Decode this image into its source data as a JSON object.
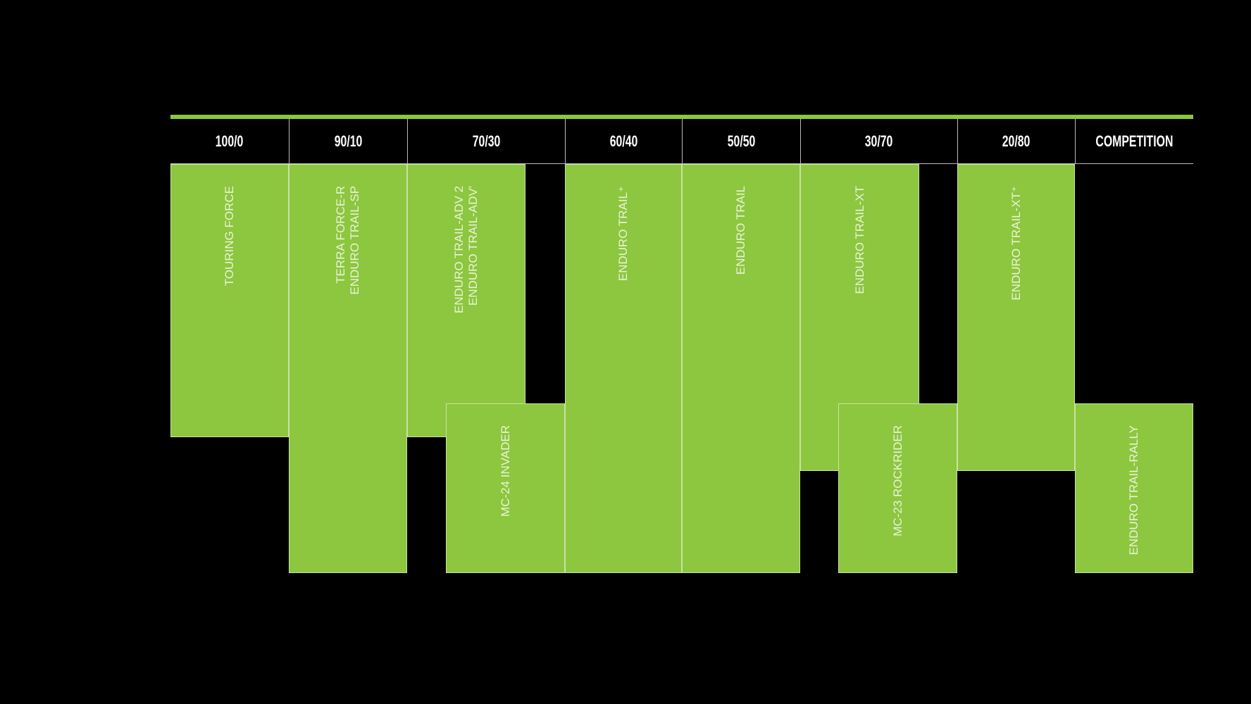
{
  "accent_color": "#8dc63f",
  "headers": [
    "100/0",
    "90/10",
    "70/30",
    "60/40",
    "50/50",
    "30/70",
    "20/80",
    "COMPETITION"
  ],
  "products": [
    {
      "lines": [
        "TOURING FORCE"
      ]
    },
    {
      "lines": [
        "TERRA FORCE-R",
        "ENDURO TRAIL-SP"
      ]
    },
    {
      "lines": [
        "ENDURO TRAIL-ADV 2",
        "ENDURO TRAIL-ADV'"
      ]
    },
    {
      "lines": [
        "MC-24 INVADER"
      ]
    },
    {
      "lines": [
        "ENDURO TRAIL⁺"
      ]
    },
    {
      "lines": [
        "ENDURO TRAIL"
      ]
    },
    {
      "lines": [
        "ENDURO TRAIL-XT"
      ]
    },
    {
      "lines": [
        "MC-23 ROCKRIDER"
      ]
    },
    {
      "lines": [
        "ENDURO TRAIL-XT⁺"
      ]
    },
    {
      "lines": [
        "ENDURO TRAIL-RALLY"
      ]
    }
  ]
}
